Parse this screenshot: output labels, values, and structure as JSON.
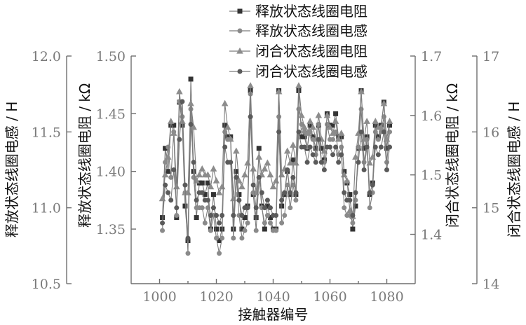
{
  "chart_data": {
    "type": "line",
    "xlabel": "接触器编号",
    "x": [
      1001,
      1002,
      1003,
      1004,
      1005,
      1006,
      1007,
      1008,
      1009,
      1010,
      1011,
      1012,
      1013,
      1014,
      1015,
      1016,
      1017,
      1018,
      1019,
      1020,
      1021,
      1022,
      1023,
      1024,
      1025,
      1026,
      1027,
      1028,
      1029,
      1030,
      1031,
      1032,
      1033,
      1034,
      1035,
      1036,
      1037,
      1038,
      1039,
      1040,
      1041,
      1042,
      1043,
      1044,
      1045,
      1046,
      1047,
      1048,
      1049,
      1050,
      1051,
      1052,
      1053,
      1054,
      1055,
      1056,
      1057,
      1058,
      1059,
      1060,
      1061,
      1062,
      1063,
      1064,
      1065,
      1066,
      1067,
      1068,
      1069,
      1070,
      1071,
      1072,
      1073,
      1074,
      1075,
      1076,
      1077,
      1078,
      1079,
      1080,
      1081
    ],
    "xlim": [
      990,
      1090
    ],
    "xticks": [
      "1000",
      "1020",
      "1040",
      "1060",
      "1080"
    ],
    "axes": [
      {
        "id": "L1",
        "label": "释放状态线圈电感 / H",
        "ylim": [
          10.5,
          12.0
        ],
        "ticks": [
          "10.5",
          "11.0",
          "11.5",
          "12.0"
        ]
      },
      {
        "id": "L2",
        "label": "释放状态线圈电阻 / kΩ",
        "ylim": [
          1.33,
          1.5
        ],
        "ticks": [
          "1.35",
          "1.40",
          "1.45",
          "1.50"
        ]
      },
      {
        "id": "R1",
        "label": "闭合状态线圈电阻 / kΩ",
        "ylim": [
          1.37,
          1.7
        ],
        "ticks": [
          "1.4",
          "1.5",
          "1.6",
          "1.7"
        ]
      },
      {
        "id": "R2",
        "label": "闭合状态线圈电感 / H",
        "ylim": [
          14,
          17
        ],
        "ticks": [
          "14",
          "15",
          "16",
          "17"
        ]
      }
    ],
    "series": [
      {
        "name": "释放状态线圈电阻",
        "marker": "square",
        "axis": "L2",
        "values": [
          1.36,
          1.42,
          1.4,
          1.44,
          1.44,
          1.36,
          1.46,
          1.44,
          1.37,
          1.34,
          1.48,
          1.4,
          1.36,
          1.39,
          1.39,
          1.38,
          1.39,
          1.35,
          1.38,
          1.35,
          1.34,
          1.35,
          1.44,
          1.43,
          1.43,
          1.35,
          1.4,
          1.38,
          1.35,
          1.36,
          1.37,
          1.47,
          1.38,
          1.36,
          1.42,
          1.37,
          1.35,
          1.37,
          1.36,
          1.35,
          1.35,
          1.47,
          1.37,
          1.38,
          1.4,
          1.38,
          1.41,
          1.38,
          1.47,
          1.43,
          1.43,
          1.42,
          1.44,
          1.43,
          1.42,
          1.44,
          1.42,
          1.41,
          1.45,
          1.44,
          1.44,
          1.45,
          1.43,
          1.43,
          1.4,
          1.39,
          1.38,
          1.35,
          1.37,
          1.42,
          1.47,
          1.42,
          1.43,
          1.38,
          1.39,
          1.44,
          1.43,
          1.44,
          1.46,
          1.42,
          1.44
        ]
      },
      {
        "name": "释放状态线圈电感",
        "marker": "circle",
        "axis": "L1",
        "values": [
          10.85,
          11.3,
          11.4,
          11.2,
          11.5,
          10.95,
          11.7,
          11.6,
          11.1,
          10.7,
          11.65,
          11.2,
          11.0,
          11.0,
          11.0,
          10.9,
          11.0,
          10.85,
          10.95,
          10.8,
          10.7,
          10.8,
          11.5,
          11.45,
          11.45,
          10.8,
          11.2,
          10.95,
          10.8,
          10.85,
          10.9,
          11.75,
          11.1,
          10.85,
          11.2,
          11.0,
          10.9,
          10.95,
          10.9,
          10.85,
          10.85,
          11.6,
          10.9,
          10.95,
          11.15,
          11.0,
          11.15,
          11.05,
          11.65,
          11.55,
          11.5,
          11.4,
          11.5,
          11.45,
          11.35,
          11.55,
          11.3,
          11.3,
          11.55,
          11.45,
          11.45,
          11.5,
          11.35,
          11.4,
          11.0,
          10.95,
          10.95,
          10.9,
          11.05,
          11.4,
          11.65,
          11.3,
          11.45,
          11.0,
          11.1,
          11.5,
          11.45,
          11.5,
          11.6,
          11.3,
          11.5
        ]
      },
      {
        "name": "闭合状态线圈电阻",
        "marker": "triangle",
        "axis": "R1",
        "values": [
          1.46,
          1.5,
          1.53,
          1.59,
          1.57,
          1.48,
          1.64,
          1.59,
          1.47,
          1.47,
          1.62,
          1.58,
          1.49,
          1.5,
          1.51,
          1.5,
          1.5,
          1.48,
          1.51,
          1.49,
          1.47,
          1.48,
          1.62,
          1.58,
          1.56,
          1.46,
          1.54,
          1.49,
          1.48,
          1.5,
          1.52,
          1.65,
          1.51,
          1.47,
          1.53,
          1.5,
          1.51,
          1.52,
          1.5,
          1.48,
          1.49,
          1.64,
          1.5,
          1.51,
          1.54,
          1.52,
          1.55,
          1.52,
          1.65,
          1.6,
          1.58,
          1.57,
          1.59,
          1.58,
          1.56,
          1.6,
          1.56,
          1.54,
          1.6,
          1.58,
          1.57,
          1.59,
          1.56,
          1.57,
          1.5,
          1.49,
          1.44,
          1.43,
          1.53,
          1.57,
          1.64,
          1.56,
          1.59,
          1.52,
          1.53,
          1.59,
          1.58,
          1.58,
          1.62,
          1.56,
          1.59
        ]
      },
      {
        "name": "闭合状态线圈电感",
        "marker": "circle",
        "axis": "R2",
        "values": [
          14.8,
          15.3,
          15.2,
          15.1,
          15.5,
          15.0,
          15.9,
          16.4,
          15.3,
          14.6,
          16.1,
          15.6,
          15.1,
          15.2,
          15.2,
          15.1,
          15.1,
          14.9,
          15.0,
          14.9,
          14.8,
          14.9,
          15.8,
          15.6,
          15.6,
          14.9,
          15.4,
          15.1,
          14.9,
          15.0,
          15.0,
          16.2,
          15.3,
          15.0,
          15.4,
          15.2,
          15.0,
          15.1,
          15.0,
          14.9,
          14.9,
          16.0,
          15.1,
          15.2,
          15.5,
          15.2,
          15.4,
          15.2,
          16.0,
          15.8,
          15.8,
          15.6,
          15.8,
          15.7,
          15.6,
          15.9,
          15.6,
          15.5,
          15.8,
          15.8,
          15.7,
          15.8,
          15.6,
          15.7,
          15.2,
          15.1,
          15.1,
          14.9,
          15.2,
          15.6,
          16.0,
          15.5,
          15.8,
          15.2,
          15.3,
          15.8,
          15.7,
          15.8,
          16.0,
          15.5,
          15.8
        ]
      }
    ]
  }
}
